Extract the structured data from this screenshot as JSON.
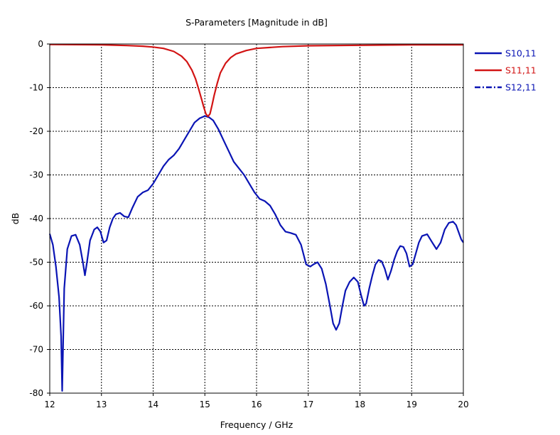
{
  "chart_data": {
    "type": "line",
    "title": "S-Parameters [Magnitude in dB]",
    "xlabel": "Frequency / GHz",
    "ylabel": "dB",
    "xlim": [
      12,
      20
    ],
    "ylim": [
      -80,
      0
    ],
    "xticks": [
      12,
      13,
      14,
      15,
      16,
      17,
      18,
      19,
      20
    ],
    "yticks": [
      0,
      -10,
      -20,
      -30,
      -40,
      -50,
      -60,
      -70,
      -80
    ],
    "grid": true,
    "legend_position": "right-top",
    "series": [
      {
        "name": "S10,11",
        "color": "#0a14b4",
        "style": "solid",
        "x": [
          12.0,
          12.06,
          12.12,
          12.18,
          12.22,
          12.24,
          12.28,
          12.34,
          12.42,
          12.5,
          12.58,
          12.64,
          12.68,
          12.72,
          12.78,
          12.86,
          12.92,
          12.98,
          13.04,
          13.1,
          13.16,
          13.22,
          13.28,
          13.36,
          13.44,
          13.52,
          13.6,
          13.7,
          13.8,
          13.9,
          14.0,
          14.1,
          14.2,
          14.3,
          14.4,
          14.5,
          14.6,
          14.7,
          14.8,
          14.9,
          15.0,
          15.08,
          15.16,
          15.26,
          15.36,
          15.46,
          15.56,
          15.66,
          15.76,
          15.86,
          15.96,
          16.06,
          16.16,
          16.26,
          16.36,
          16.46,
          16.56,
          16.66,
          16.76,
          16.86,
          16.96,
          17.04,
          17.1,
          17.18,
          17.26,
          17.34,
          17.42,
          17.48,
          17.54,
          17.6,
          17.66,
          17.72,
          17.8,
          17.88,
          17.96,
          18.02,
          18.08,
          18.12,
          18.18,
          18.24,
          18.3,
          18.36,
          18.42,
          18.48,
          18.54,
          18.6,
          18.66,
          18.72,
          18.78,
          18.84,
          18.9,
          18.96,
          19.02,
          19.08,
          19.14,
          19.2,
          19.3,
          19.4,
          19.48,
          19.56,
          19.64,
          19.72,
          19.8,
          19.86,
          19.92,
          19.96,
          20.0
        ],
        "y": [
          -43.5,
          -46,
          -51,
          -58,
          -67,
          -79.5,
          -56,
          -47,
          -44,
          -43.7,
          -46,
          -50,
          -53,
          -50,
          -45,
          -42.5,
          -42,
          -43,
          -45.5,
          -45,
          -42,
          -40,
          -39,
          -38.7,
          -39.5,
          -39.7,
          -37.5,
          -35,
          -34,
          -33.5,
          -32,
          -30,
          -28,
          -26.5,
          -25.5,
          -24,
          -22,
          -20,
          -18,
          -17,
          -16.5,
          -16.8,
          -17.5,
          -19.5,
          -22,
          -24.5,
          -27,
          -28.5,
          -30,
          -32,
          -34,
          -35.5,
          -36,
          -37,
          -39,
          -41.5,
          -43,
          -43.3,
          -43.7,
          -46,
          -50.5,
          -51,
          -50.5,
          -50,
          -51.5,
          -55,
          -60,
          -64,
          -65.5,
          -64,
          -60,
          -56.5,
          -54.5,
          -53.5,
          -54.5,
          -57.5,
          -60,
          -59.5,
          -56,
          -53,
          -50.5,
          -49.5,
          -49.8,
          -51.5,
          -54,
          -52,
          -49.5,
          -47.5,
          -46.3,
          -46.5,
          -48,
          -51,
          -50.5,
          -48,
          -45.5,
          -44,
          -43.6,
          -45.5,
          -47,
          -45.5,
          -42.5,
          -41,
          -40.7,
          -41.5,
          -43.5,
          -44.8,
          -45.5
        ]
      },
      {
        "name": "S11,11",
        "color": "#d21414",
        "style": "solid",
        "x": [
          12.0,
          12.5,
          13.0,
          13.5,
          13.8,
          14.0,
          14.2,
          14.4,
          14.55,
          14.65,
          14.75,
          14.82,
          14.88,
          14.94,
          14.98,
          15.02,
          15.06,
          15.1,
          15.14,
          15.18,
          15.24,
          15.3,
          15.4,
          15.5,
          15.6,
          15.8,
          16.0,
          16.5,
          17.0,
          18.0,
          19.0,
          20.0
        ],
        "y": [
          -0.1,
          -0.15,
          -0.2,
          -0.35,
          -0.5,
          -0.7,
          -1.0,
          -1.7,
          -2.8,
          -4.0,
          -6.0,
          -8.0,
          -10.3,
          -12.8,
          -14.5,
          -16.0,
          -16.6,
          -16.0,
          -14.0,
          -11.8,
          -9.0,
          -6.6,
          -4.4,
          -3.1,
          -2.3,
          -1.5,
          -1.0,
          -0.6,
          -0.4,
          -0.3,
          -0.2,
          -0.2
        ]
      },
      {
        "name": "S12,11",
        "color": "#0a14b4",
        "style": "dashdot",
        "x": [],
        "y": []
      }
    ]
  }
}
